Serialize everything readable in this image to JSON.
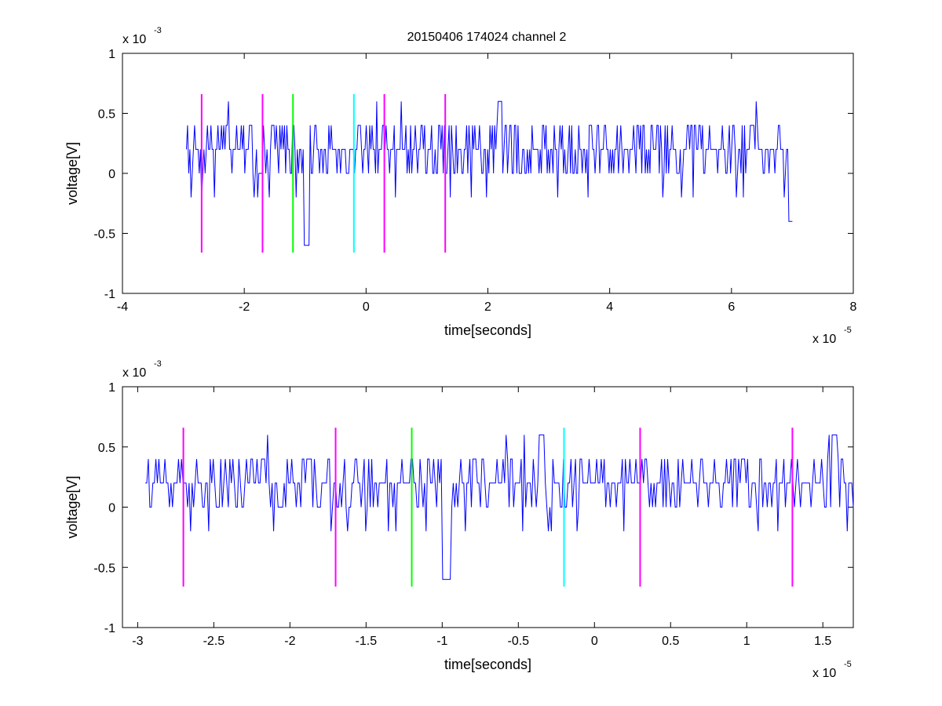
{
  "figure": {
    "title": "20150406 174024 channel 2"
  },
  "colors": {
    "signal": "#0000ff",
    "magenta": "#ff00ff",
    "green": "#00ff00",
    "cyan": "#00ffff",
    "axis": "#000000"
  },
  "chart_data": [
    {
      "type": "line",
      "title": "20150406 174024 channel 2",
      "xlabel": "time[seconds]",
      "ylabel": "voltage[V]",
      "x_exponent_label": "x 10",
      "x_exponent": "-5",
      "y_exponent_label": "x 10",
      "y_exponent": "-3",
      "xlim": [
        -4e-05,
        8e-05
      ],
      "ylim": [
        -0.001,
        0.001
      ],
      "x_ticks": [
        -4e-05,
        -2e-05,
        0,
        2e-05,
        4e-05,
        6e-05,
        8e-05
      ],
      "x_tick_labels": [
        "-4",
        "-2",
        "0",
        "2",
        "4",
        "6",
        "8"
      ],
      "y_ticks": [
        -0.001,
        -0.0005,
        0,
        0.0005,
        0.001
      ],
      "y_tick_labels": [
        "-1",
        "-0.5",
        "0",
        "0.5",
        "1"
      ],
      "grid": false,
      "series": [
        {
          "style": "signal",
          "color": "#0000ff",
          "x_start": -2.95e-05,
          "x_end": 7e-05,
          "notes": "dense noise trace between about -0.6e-3 and 0.6e-3 V"
        }
      ],
      "markers": [
        {
          "x": -2.7e-05,
          "y0": -0.00066,
          "y1": 0.00066,
          "color": "#ff00ff"
        },
        {
          "x": -1.7e-05,
          "y0": -0.00066,
          "y1": 0.00066,
          "color": "#ff00ff"
        },
        {
          "x": -1.2e-05,
          "y0": -0.00066,
          "y1": 0.00066,
          "color": "#00ff00"
        },
        {
          "x": -2e-06,
          "y0": -0.00066,
          "y1": 0.00066,
          "color": "#00ffff"
        },
        {
          "x": 3e-06,
          "y0": -0.00066,
          "y1": 0.00066,
          "color": "#ff00ff"
        },
        {
          "x": 1.3e-05,
          "y0": -0.00066,
          "y1": 0.00066,
          "color": "#ff00ff"
        }
      ]
    },
    {
      "type": "line",
      "title": "",
      "xlabel": "time[seconds]",
      "ylabel": "voltage[V]",
      "x_exponent_label": "x 10",
      "x_exponent": "-5",
      "y_exponent_label": "x 10",
      "y_exponent": "-3",
      "xlim": [
        -3.1e-05,
        1.7e-05
      ],
      "ylim": [
        -0.001,
        0.001
      ],
      "x_ticks": [
        -3e-05,
        -2.5e-05,
        -2e-05,
        -1.5e-05,
        -1e-05,
        -5e-06,
        0,
        5e-06,
        1e-05,
        1.5e-05
      ],
      "x_tick_labels": [
        "-3",
        "-2.5",
        "-2",
        "-1.5",
        "-1",
        "-0.5",
        "0",
        "0.5",
        "1",
        "1.5"
      ],
      "y_ticks": [
        -0.001,
        -0.0005,
        0,
        0.0005,
        0.001
      ],
      "y_tick_labels": [
        "-1",
        "-0.5",
        "0",
        "0.5",
        "1"
      ],
      "grid": false,
      "series": [
        {
          "style": "signal",
          "color": "#0000ff",
          "x_start": -2.95e-05,
          "x_end": 1.7e-05,
          "notes": "zoomed noise trace; notable dip to about -0.6e-3 V near -0.97e-5 s"
        }
      ],
      "markers": [
        {
          "x": -2.7e-05,
          "y0": -0.00066,
          "y1": 0.00066,
          "color": "#ff00ff"
        },
        {
          "x": -1.7e-05,
          "y0": -0.00066,
          "y1": 0.00066,
          "color": "#ff00ff"
        },
        {
          "x": -1.2e-05,
          "y0": -0.00066,
          "y1": 0.00066,
          "color": "#00ff00"
        },
        {
          "x": -2e-06,
          "y0": -0.00066,
          "y1": 0.00066,
          "color": "#00ffff"
        },
        {
          "x": 3e-06,
          "y0": -0.00066,
          "y1": 0.00066,
          "color": "#ff00ff"
        },
        {
          "x": 1.3e-05,
          "y0": -0.00066,
          "y1": 0.00066,
          "color": "#ff00ff"
        }
      ]
    }
  ]
}
